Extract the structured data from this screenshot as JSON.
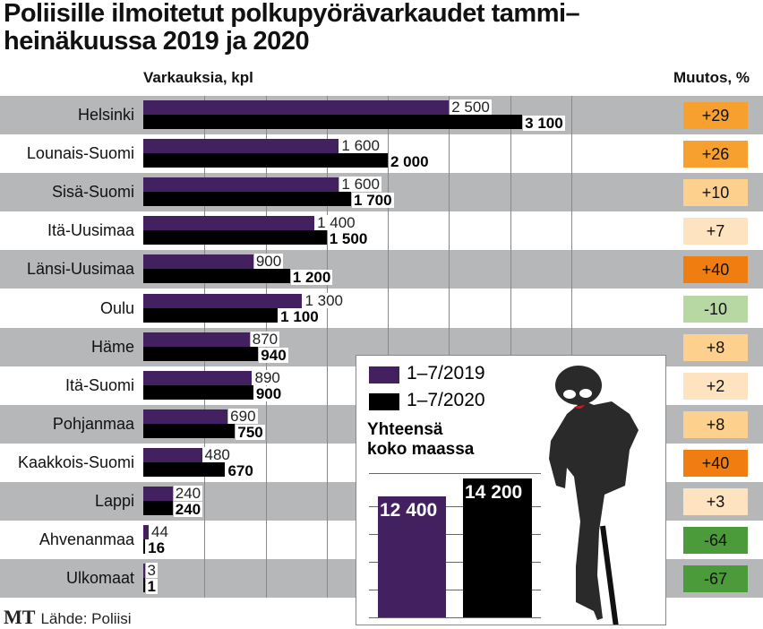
{
  "chart_data": {
    "type": "bar",
    "title": "Poliisille ilmoitetut polkupyörävarkaudet tammi–heinäkuussa 2019 ja 2020",
    "xlabel": "Varkauksia, kpl",
    "change_label": "Muutos, %",
    "categories": [
      "Helsinki",
      "Lounais-Suomi",
      "Sisä-Suomi",
      "Itä-Uusimaa",
      "Länsi-Uusimaa",
      "Oulu",
      "Häme",
      "Itä-Suomi",
      "Pohjanmaa",
      "Kaakkois-Suomi",
      "Lappi",
      "Ahvenanmaa",
      "Ulkomaat"
    ],
    "series": [
      {
        "name": "1–7/2019",
        "color": "#43205f",
        "values": [
          2500,
          1600,
          1600,
          1400,
          900,
          1300,
          870,
          890,
          690,
          480,
          240,
          44,
          3
        ],
        "labels": [
          "2 500",
          "1 600",
          "1 600",
          "1 400",
          "900",
          "1 300",
          "870",
          "890",
          "690",
          "480",
          "240",
          "44",
          "3"
        ]
      },
      {
        "name": "1–7/2020",
        "color": "#000000",
        "values": [
          3100,
          2000,
          1700,
          1500,
          1200,
          1100,
          940,
          900,
          750,
          670,
          240,
          16,
          1
        ],
        "labels": [
          "3 100",
          "2 000",
          "1 700",
          "1 500",
          "1 200",
          "1 100",
          "940",
          "900",
          "750",
          "670",
          "240",
          "16",
          "1"
        ]
      }
    ],
    "change": [
      "+29",
      "+26",
      "+10",
      "+7",
      "+40",
      "-10",
      "+8",
      "+2",
      "+8",
      "+40",
      "+3",
      "-64",
      "-67"
    ],
    "change_colors": [
      "#f7a030",
      "#f7a030",
      "#fdd08e",
      "#fde3c0",
      "#f07d10",
      "#b7d7a3",
      "#fdd08e",
      "#fde3c0",
      "#fdd08e",
      "#f07d10",
      "#fde3c0",
      "#4b9b3a",
      "#4b9b3a"
    ],
    "xlim": [
      0,
      3500
    ],
    "totals": {
      "title": "Yhteensä koko maassa",
      "values": [
        12400,
        14200
      ],
      "labels": [
        "12 400",
        "14 200"
      ]
    }
  },
  "footer": {
    "logo": "MT",
    "source": "Lähde: Poliisi"
  }
}
